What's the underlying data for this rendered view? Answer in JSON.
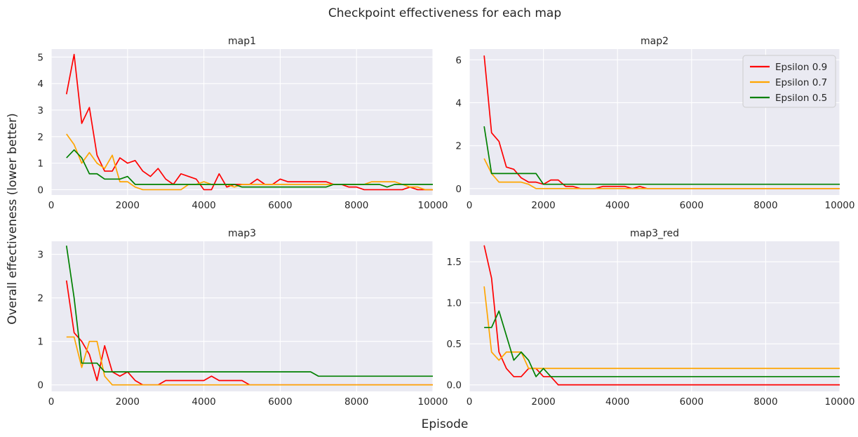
{
  "figure": {
    "title": "Checkpoint effectiveness for each map",
    "xlabel": "Episode",
    "ylabel": "Overall effectiveness (lower better)",
    "background": "#eaeaf2",
    "grid_color": "#ffffff"
  },
  "series_styles": [
    {
      "name": "Epsilon 0.9",
      "color": "#ff0000"
    },
    {
      "name": "Epsilon 0.7",
      "color": "#ffa500"
    },
    {
      "name": "Epsilon 0.5",
      "color": "#008000"
    }
  ],
  "chart_data": [
    {
      "type": "line",
      "title": "map1",
      "xlim": [
        0,
        10000
      ],
      "ylim": [
        -0.2,
        5.3
      ],
      "xticks": [
        0,
        2000,
        4000,
        6000,
        8000,
        10000
      ],
      "yticks": [
        0,
        1,
        2,
        3,
        4,
        5
      ],
      "legend": "none",
      "x": [
        400,
        600,
        800,
        1000,
        1200,
        1400,
        1600,
        1800,
        2000,
        2200,
        2400,
        2600,
        2800,
        3000,
        3200,
        3400,
        3600,
        3800,
        4000,
        4200,
        4400,
        4600,
        4800,
        5000,
        5200,
        5400,
        5600,
        5800,
        6000,
        6200,
        6400,
        6600,
        6800,
        7000,
        7200,
        7400,
        7600,
        7800,
        8000,
        8200,
        8400,
        8600,
        8800,
        9000,
        9200,
        9400,
        9600,
        9800,
        10000
      ],
      "series": [
        {
          "name": "Epsilon 0.9",
          "values": [
            3.6,
            5.1,
            2.5,
            3.1,
            1.3,
            0.7,
            0.7,
            1.2,
            1.0,
            1.1,
            0.7,
            0.5,
            0.8,
            0.4,
            0.2,
            0.6,
            0.5,
            0.4,
            0.0,
            0.0,
            0.6,
            0.1,
            0.2,
            0.2,
            0.2,
            0.4,
            0.2,
            0.2,
            0.4,
            0.3,
            0.3,
            0.3,
            0.3,
            0.3,
            0.3,
            0.2,
            0.2,
            0.1,
            0.1,
            0.0,
            0.0,
            0.0,
            0.0,
            0.0,
            0.0,
            0.1,
            0.0,
            0.0,
            0.0
          ]
        },
        {
          "name": "Epsilon 0.7",
          "values": [
            2.1,
            1.7,
            1.0,
            1.4,
            1.0,
            0.8,
            1.3,
            0.3,
            0.3,
            0.1,
            0.0,
            0.0,
            0.0,
            0.0,
            0.0,
            0.0,
            0.2,
            0.2,
            0.3,
            0.2,
            0.2,
            0.2,
            0.1,
            0.2,
            0.2,
            0.2,
            0.2,
            0.2,
            0.2,
            0.2,
            0.2,
            0.2,
            0.2,
            0.2,
            0.2,
            0.2,
            0.2,
            0.2,
            0.2,
            0.2,
            0.3,
            0.3,
            0.3,
            0.3,
            0.2,
            0.1,
            0.1,
            0.0,
            0.0
          ]
        },
        {
          "name": "Epsilon 0.5",
          "values": [
            1.2,
            1.5,
            1.2,
            0.6,
            0.6,
            0.4,
            0.4,
            0.4,
            0.5,
            0.2,
            0.2,
            0.2,
            0.2,
            0.2,
            0.2,
            0.2,
            0.2,
            0.2,
            0.2,
            0.2,
            0.2,
            0.2,
            0.2,
            0.1,
            0.1,
            0.1,
            0.1,
            0.1,
            0.1,
            0.1,
            0.1,
            0.1,
            0.1,
            0.1,
            0.1,
            0.2,
            0.2,
            0.2,
            0.2,
            0.2,
            0.2,
            0.2,
            0.1,
            0.2,
            0.2,
            0.2,
            0.2,
            0.2,
            0.2
          ]
        }
      ]
    },
    {
      "type": "line",
      "title": "map2",
      "xlim": [
        0,
        10000
      ],
      "ylim": [
        -0.3,
        6.5
      ],
      "xticks": [
        0,
        2000,
        4000,
        6000,
        8000,
        10000
      ],
      "yticks": [
        0,
        2,
        4,
        6
      ],
      "legend": "top-right",
      "x": [
        400,
        600,
        800,
        1000,
        1200,
        1400,
        1600,
        1800,
        2000,
        2200,
        2400,
        2600,
        2800,
        3000,
        3200,
        3400,
        3600,
        3800,
        4000,
        4200,
        4400,
        4600,
        4800,
        10000
      ],
      "series": [
        {
          "name": "Epsilon 0.9",
          "values": [
            6.2,
            2.6,
            2.2,
            1.0,
            0.9,
            0.5,
            0.3,
            0.3,
            0.2,
            0.4,
            0.4,
            0.1,
            0.1,
            0.0,
            0.0,
            0.0,
            0.1,
            0.1,
            0.1,
            0.1,
            0.0,
            0.1,
            0.0,
            0.0
          ]
        },
        {
          "name": "Epsilon 0.7",
          "values": [
            1.4,
            0.7,
            0.3,
            0.3,
            0.3,
            0.3,
            0.2,
            0.0,
            0.0,
            0.0,
            0.0,
            0.0,
            0.0,
            0.0,
            0.0,
            0.0,
            0.0,
            0.0,
            0.0,
            0.0,
            0.0,
            0.0,
            0.0,
            0.0
          ]
        },
        {
          "name": "Epsilon 0.5",
          "values": [
            2.9,
            0.7,
            0.7,
            0.7,
            0.7,
            0.7,
            0.7,
            0.7,
            0.2,
            0.2,
            0.2,
            0.2,
            0.2,
            0.2,
            0.2,
            0.2,
            0.2,
            0.2,
            0.2,
            0.2,
            0.2,
            0.2,
            0.2,
            0.2
          ]
        }
      ]
    },
    {
      "type": "line",
      "title": "map3",
      "xlim": [
        0,
        10000
      ],
      "ylim": [
        -0.15,
        3.3
      ],
      "xticks": [
        0,
        2000,
        4000,
        6000,
        8000,
        10000
      ],
      "yticks": [
        0,
        1,
        2,
        3
      ],
      "legend": "none",
      "x": [
        400,
        600,
        800,
        1000,
        1200,
        1400,
        1600,
        1800,
        2000,
        2200,
        2400,
        2600,
        2800,
        3000,
        3200,
        3400,
        3600,
        3800,
        4000,
        4200,
        4400,
        4600,
        4800,
        5000,
        5200,
        5400,
        6800,
        7000,
        10000
      ],
      "series": [
        {
          "name": "Epsilon 0.9",
          "values": [
            2.4,
            1.2,
            1.0,
            0.7,
            0.1,
            0.9,
            0.3,
            0.2,
            0.3,
            0.1,
            0.0,
            0.0,
            0.0,
            0.1,
            0.1,
            0.1,
            0.1,
            0.1,
            0.1,
            0.2,
            0.1,
            0.1,
            0.1,
            0.1,
            0.0,
            0.0,
            0.0,
            0.0,
            0.0
          ]
        },
        {
          "name": "Epsilon 0.7",
          "values": [
            1.1,
            1.1,
            0.4,
            1.0,
            1.0,
            0.2,
            0.0,
            0.0,
            0.0,
            0.0,
            0.0,
            0.0,
            0.0,
            0.0,
            0.0,
            0.0,
            0.0,
            0.0,
            0.0,
            0.0,
            0.0,
            0.0,
            0.0,
            0.0,
            0.0,
            0.0,
            0.0,
            0.0,
            0.0
          ]
        },
        {
          "name": "Epsilon 0.5",
          "values": [
            3.2,
            2.0,
            0.5,
            0.5,
            0.5,
            0.3,
            0.3,
            0.3,
            0.3,
            0.3,
            0.3,
            0.3,
            0.3,
            0.3,
            0.3,
            0.3,
            0.3,
            0.3,
            0.3,
            0.3,
            0.3,
            0.3,
            0.3,
            0.3,
            0.3,
            0.3,
            0.3,
            0.2,
            0.2
          ]
        }
      ]
    },
    {
      "type": "line",
      "title": "map3_red",
      "xlim": [
        0,
        10000
      ],
      "ylim": [
        -0.08,
        1.75
      ],
      "xticks": [
        0,
        2000,
        4000,
        6000,
        8000,
        10000
      ],
      "yticks": [
        0.0,
        0.5,
        1.0,
        1.5
      ],
      "legend": "none",
      "x": [
        400,
        600,
        800,
        1000,
        1200,
        1400,
        1600,
        1800,
        2000,
        2200,
        2400,
        10000
      ],
      "series": [
        {
          "name": "Epsilon 0.9",
          "values": [
            1.7,
            1.3,
            0.4,
            0.2,
            0.1,
            0.1,
            0.2,
            0.2,
            0.1,
            0.1,
            0.0,
            0.0
          ]
        },
        {
          "name": "Epsilon 0.7",
          "values": [
            1.2,
            0.4,
            0.3,
            0.4,
            0.4,
            0.4,
            0.2,
            0.2,
            0.2,
            0.2,
            0.2,
            0.2
          ]
        },
        {
          "name": "Epsilon 0.5",
          "values": [
            0.7,
            0.7,
            0.9,
            0.6,
            0.3,
            0.4,
            0.3,
            0.1,
            0.2,
            0.1,
            0.1,
            0.1
          ]
        }
      ]
    }
  ]
}
